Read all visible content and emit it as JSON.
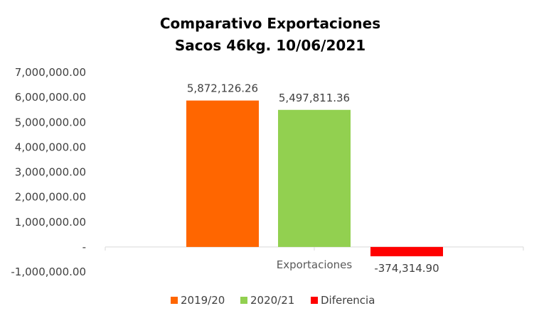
{
  "chart_data": {
    "type": "bar",
    "title": [
      "Comparativo  Exportaciones",
      "Sacos 46kg. 10/06/2021"
    ],
    "categories": [
      "Exportaciones"
    ],
    "series": [
      {
        "name": "2019/20",
        "values": [
          5872126.26
        ],
        "label": "5,872,126.26",
        "color": "#FF6600"
      },
      {
        "name": "2020/21",
        "values": [
          5497811.36
        ],
        "label": "5,497,811.36",
        "color": "#92D050"
      },
      {
        "name": "Diferencia",
        "values": [
          -374314.9
        ],
        "label": "-374,314.90",
        "color": "#FF0000"
      }
    ],
    "ylim": [
      -1000000,
      7000000
    ],
    "y_ticks": [
      {
        "value": 7000000,
        "label": "7,000,000.00"
      },
      {
        "value": 6000000,
        "label": "6,000,000.00"
      },
      {
        "value": 5000000,
        "label": "5,000,000.00"
      },
      {
        "value": 4000000,
        "label": "4,000,000.00"
      },
      {
        "value": 3000000,
        "label": "3,000,000.00"
      },
      {
        "value": 2000000,
        "label": "2,000,000.00"
      },
      {
        "value": 1000000,
        "label": "1,000,000.00"
      },
      {
        "value": 0,
        "label": "-"
      },
      {
        "value": -1000000,
        "label": "-1,000,000.00"
      }
    ],
    "grid": false,
    "legend_position": "bottom",
    "axis_color": "#D9D9D9"
  }
}
